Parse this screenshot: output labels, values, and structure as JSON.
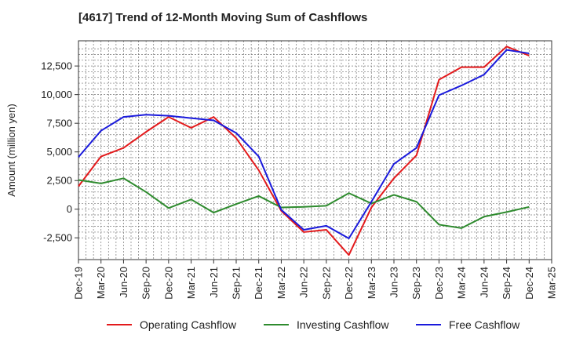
{
  "chart_data": {
    "type": "line",
    "title": "[4617]  Trend of 12-Month Moving Sum of Cashflows",
    "xlabel": "",
    "ylabel": "Amount (million yen)",
    "categories": [
      "Dec-19",
      "Mar-20",
      "Jun-20",
      "Sep-20",
      "Dec-20",
      "Mar-21",
      "Jun-21",
      "Sep-21",
      "Dec-21",
      "Mar-22",
      "Jun-22",
      "Sep-22",
      "Dec-22",
      "Mar-23",
      "Jun-23",
      "Sep-23",
      "Dec-23",
      "Mar-24",
      "Jun-24",
      "Sep-24",
      "Dec-24",
      "Mar-25"
    ],
    "ylim": [
      -4400,
      14700
    ],
    "yticks": [
      -2500,
      0,
      2500,
      5000,
      7500,
      10000,
      12500
    ],
    "ytick_labels": [
      "-2,500",
      "0",
      "2,500",
      "5,000",
      "7,500",
      "10,000",
      "12,500"
    ],
    "grid": true,
    "legend_position": "bottom",
    "series": [
      {
        "name": "Operating Cashflow",
        "color": "#e31a1c",
        "values": [
          2000,
          4600,
          5350,
          6750,
          8050,
          7100,
          8050,
          6200,
          3400,
          -150,
          -2000,
          -1800,
          -4000,
          150,
          2700,
          4700,
          11300,
          12400,
          12400,
          14200,
          13400,
          null
        ]
      },
      {
        "name": "Investing Cashflow",
        "color": "#2e8b2e",
        "values": [
          2550,
          2250,
          2700,
          1500,
          100,
          850,
          -300,
          450,
          1150,
          150,
          200,
          300,
          1400,
          500,
          1250,
          650,
          -1350,
          -1650,
          -650,
          -250,
          200,
          null
        ]
      },
      {
        "name": "Free Cashflow",
        "color": "#1a1adc",
        "values": [
          4550,
          6850,
          8050,
          8250,
          8150,
          7950,
          7750,
          6650,
          4600,
          -50,
          -1800,
          -1450,
          -2550,
          650,
          3950,
          5350,
          9950,
          10800,
          11750,
          13900,
          13600,
          null
        ]
      }
    ]
  }
}
